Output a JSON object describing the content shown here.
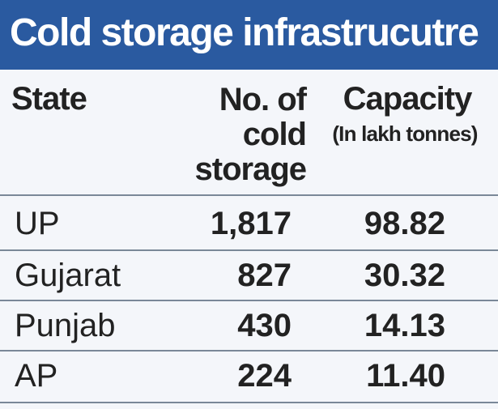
{
  "title": "Cold storage infrastrucutre",
  "chart_data": {
    "type": "table",
    "title": "Cold storage infrastrucutre",
    "columns": [
      {
        "label_lines": [
          "State"
        ]
      },
      {
        "label_lines": [
          "No. of",
          "cold",
          "storage"
        ]
      },
      {
        "label_lines": [
          "Capacity"
        ],
        "sublabel": "(In lakh tonnes)"
      }
    ],
    "rows": [
      {
        "state": "UP",
        "count": "1,817",
        "capacity": "98.82"
      },
      {
        "state": "Gujarat",
        "count": "827",
        "capacity": "30.32"
      },
      {
        "state": "Punjab",
        "count": "430",
        "capacity": "14.13"
      },
      {
        "state": "AP",
        "count": "224",
        "capacity": "11.40"
      }
    ]
  },
  "colors": {
    "title_bar": "#2a5aa0",
    "title_text": "#ffffff",
    "background": "#f4f6fa",
    "text": "#222222",
    "rule": "#7a8898"
  }
}
